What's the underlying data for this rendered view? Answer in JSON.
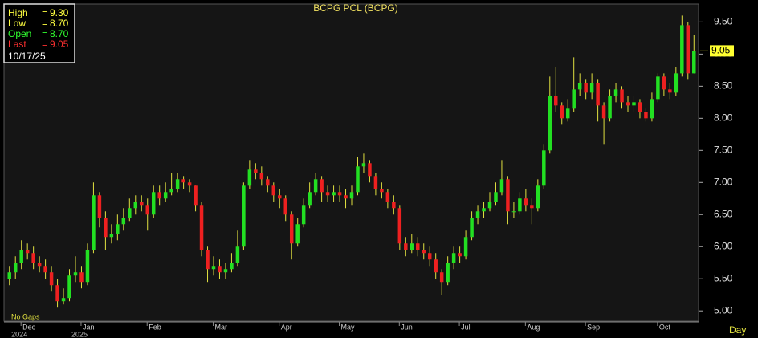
{
  "chart_data": {
    "type": "candlestick",
    "title": "BCPG PCL (BCPG)",
    "info": {
      "items": [
        {
          "label": "High",
          "value": "9.30",
          "color": "#ffff40"
        },
        {
          "label": "Low",
          "value": "8.70",
          "color": "#ffff40"
        },
        {
          "label": "Open",
          "value": "8.70",
          "color": "#30ff30"
        },
        {
          "label": "Last",
          "value": "9.05",
          "color": "#ff3030"
        }
      ],
      "date": "10/17/25"
    },
    "note": "No Gaps",
    "period": "Day",
    "categories": [
      null,
      null,
      null,
      "Dec",
      null,
      null,
      null,
      null,
      null,
      null,
      null,
      null,
      null,
      "Jan",
      null,
      null,
      null,
      null,
      null,
      null,
      null,
      null,
      null,
      null,
      "Feb",
      null,
      null,
      null,
      null,
      null,
      null,
      null,
      null,
      null,
      null,
      "Mar",
      null,
      null,
      null,
      null,
      null,
      null,
      null,
      null,
      null,
      null,
      "Apr",
      null,
      null,
      null,
      null,
      null,
      null,
      null,
      null,
      null,
      "May",
      null,
      null,
      null,
      null,
      null,
      null,
      null,
      null,
      null,
      "Jun",
      null,
      null,
      null,
      null,
      null,
      null,
      null,
      null,
      null,
      "Jul",
      null,
      null,
      null,
      null,
      null,
      null,
      null,
      null,
      null,
      null,
      "Aug",
      null,
      null,
      null,
      null,
      null,
      null,
      null,
      null,
      null,
      "Sep",
      null,
      null,
      null,
      null,
      null,
      null,
      null,
      null,
      null,
      null,
      null,
      "Oct",
      null,
      null,
      null,
      null,
      null
    ],
    "year_categories": [
      null,
      null,
      null,
      "2024",
      null,
      null,
      null,
      null,
      null,
      null,
      null,
      null,
      null,
      "2025",
      null,
      null,
      null,
      null,
      null,
      null,
      null,
      null,
      null,
      null,
      null,
      null,
      null,
      null,
      null,
      null,
      null,
      null,
      null,
      null,
      null,
      null,
      null,
      null,
      null,
      null,
      null,
      null,
      null,
      null,
      null,
      null,
      null,
      null,
      null,
      null,
      null,
      null,
      null,
      null,
      null,
      null,
      null,
      null,
      null,
      null,
      null,
      null,
      null,
      null,
      null,
      null,
      null,
      null,
      null,
      null,
      null,
      null,
      null,
      null,
      null,
      null,
      null,
      null,
      null,
      null,
      null,
      null,
      null,
      null,
      null,
      null,
      null,
      null,
      null,
      null,
      null,
      null,
      null,
      null,
      null,
      null,
      null,
      null,
      null,
      null,
      null,
      null,
      null,
      null,
      null,
      null,
      null,
      null,
      null,
      null,
      null,
      null,
      null,
      null,
      null
    ],
    "open": [
      5.5,
      5.6,
      5.75,
      5.95,
      5.9,
      5.75,
      5.7,
      5.6,
      5.4,
      5.15,
      5.2,
      5.55,
      5.6,
      5.45,
      5.95,
      6.8,
      6.45,
      6.15,
      6.2,
      6.35,
      6.45,
      6.6,
      6.7,
      6.65,
      6.5,
      6.85,
      6.75,
      6.85,
      6.9,
      7.05,
      7.0,
      6.95,
      6.65,
      5.95,
      5.65,
      5.7,
      5.6,
      5.65,
      5.75,
      6.0,
      6.95,
      7.2,
      7.15,
      7.05,
      6.95,
      6.8,
      6.75,
      6.5,
      6.05,
      6.35,
      6.65,
      6.85,
      7.05,
      6.85,
      6.8,
      6.85,
      6.8,
      6.75,
      6.85,
      7.25,
      7.3,
      7.1,
      6.9,
      6.85,
      6.7,
      6.6,
      6.05,
      5.95,
      6.05,
      5.95,
      5.9,
      5.8,
      5.6,
      5.45,
      5.75,
      5.9,
      5.85,
      6.15,
      6.45,
      6.55,
      6.6,
      6.7,
      6.85,
      7.05,
      6.55,
      6.55,
      6.75,
      6.65,
      6.6,
      6.95,
      7.5,
      8.35,
      8.2,
      8.0,
      8.15,
      8.45,
      8.55,
      8.4,
      8.55,
      8.2,
      8.0,
      8.35,
      8.45,
      8.25,
      8.2,
      8.25,
      8.1,
      8.0,
      8.3,
      8.65,
      8.45,
      8.4,
      8.7,
      9.45,
      8.7
    ],
    "high": [
      5.7,
      5.85,
      6.1,
      6.05,
      6.0,
      5.85,
      5.8,
      5.7,
      5.5,
      5.35,
      5.65,
      5.85,
      5.7,
      6.05,
      7.0,
      6.85,
      6.55,
      6.35,
      6.5,
      6.6,
      6.75,
      6.8,
      6.8,
      6.75,
      6.95,
      6.95,
      7.0,
      7.15,
      7.15,
      7.1,
      7.05,
      6.95,
      6.7,
      6.0,
      5.85,
      5.8,
      5.75,
      5.9,
      6.25,
      7.0,
      7.35,
      7.3,
      7.25,
      7.1,
      7.0,
      6.9,
      6.8,
      6.55,
      6.45,
      6.75,
      7.0,
      7.15,
      7.1,
      6.95,
      6.95,
      6.95,
      6.9,
      6.95,
      7.4,
      7.45,
      7.35,
      7.15,
      7.0,
      6.9,
      6.8,
      6.65,
      6.15,
      6.2,
      6.15,
      6.05,
      6.0,
      5.9,
      5.65,
      5.85,
      6.0,
      6.0,
      6.25,
      6.55,
      6.65,
      6.7,
      6.85,
      7.0,
      7.35,
      7.1,
      6.7,
      6.85,
      6.9,
      6.75,
      7.05,
      7.6,
      8.65,
      8.8,
      8.25,
      8.3,
      8.95,
      8.7,
      8.6,
      8.7,
      8.6,
      8.25,
      8.45,
      8.55,
      8.5,
      8.35,
      8.35,
      8.3,
      8.15,
      8.4,
      8.7,
      8.7,
      8.55,
      8.8,
      9.6,
      9.5,
      9.3
    ],
    "low": [
      5.4,
      5.5,
      5.65,
      5.8,
      5.65,
      5.6,
      5.5,
      5.3,
      5.05,
      5.1,
      5.15,
      5.45,
      5.35,
      5.4,
      5.9,
      6.3,
      5.95,
      6.05,
      6.1,
      6.25,
      6.4,
      6.5,
      6.55,
      6.25,
      6.45,
      6.65,
      6.7,
      6.8,
      6.85,
      6.9,
      6.85,
      6.55,
      5.85,
      5.45,
      5.55,
      5.5,
      5.5,
      5.6,
      5.7,
      5.95,
      6.9,
      7.05,
      6.95,
      6.85,
      6.7,
      6.6,
      6.4,
      5.8,
      6.0,
      6.3,
      6.6,
      6.8,
      6.7,
      6.7,
      6.7,
      6.7,
      6.6,
      6.65,
      6.8,
      7.15,
      7.0,
      6.8,
      6.75,
      6.6,
      6.5,
      5.95,
      5.85,
      5.9,
      5.85,
      5.8,
      5.7,
      5.5,
      5.25,
      5.4,
      5.65,
      5.75,
      5.8,
      6.1,
      6.35,
      6.45,
      6.55,
      6.65,
      6.8,
      6.35,
      6.45,
      6.5,
      6.55,
      6.35,
      6.55,
      6.9,
      7.45,
      8.1,
      7.9,
      7.95,
      8.1,
      8.35,
      8.3,
      8.3,
      7.95,
      7.6,
      7.95,
      8.25,
      8.15,
      8.1,
      8.1,
      8.0,
      7.95,
      7.95,
      8.25,
      8.35,
      8.3,
      8.35,
      8.65,
      8.6,
      8.7
    ],
    "close": [
      5.6,
      5.75,
      5.95,
      5.9,
      5.75,
      5.7,
      5.6,
      5.4,
      5.15,
      5.2,
      5.55,
      5.6,
      5.45,
      5.95,
      6.8,
      6.45,
      6.15,
      6.2,
      6.35,
      6.45,
      6.6,
      6.7,
      6.65,
      6.5,
      6.85,
      6.75,
      6.85,
      6.9,
      7.05,
      7.0,
      6.95,
      6.65,
      5.95,
      5.65,
      5.7,
      5.6,
      5.65,
      5.75,
      6.0,
      6.95,
      7.2,
      7.15,
      7.05,
      6.95,
      6.8,
      6.75,
      6.5,
      6.05,
      6.35,
      6.65,
      6.85,
      7.05,
      6.85,
      6.8,
      6.85,
      6.8,
      6.75,
      6.85,
      7.25,
      7.3,
      7.1,
      6.9,
      6.85,
      6.7,
      6.6,
      6.05,
      5.95,
      6.05,
      5.95,
      5.9,
      5.8,
      5.6,
      5.45,
      5.75,
      5.9,
      5.85,
      6.15,
      6.45,
      6.55,
      6.6,
      6.7,
      6.85,
      7.05,
      6.55,
      6.55,
      6.75,
      6.65,
      6.6,
      6.95,
      7.5,
      8.35,
      8.2,
      8.0,
      8.15,
      8.45,
      8.55,
      8.4,
      8.55,
      8.2,
      8.0,
      8.35,
      8.45,
      8.25,
      8.2,
      8.25,
      8.1,
      8.0,
      8.3,
      8.65,
      8.45,
      8.4,
      8.7,
      9.45,
      8.7,
      9.05
    ],
    "up_color": "#22e022",
    "down_color": "#ee2020",
    "wick_color": "#e0e040",
    "ylim": [
      4.84,
      9.78
    ],
    "yticks": [
      {
        "value": 5,
        "label": "5.00"
      },
      {
        "value": 5.5,
        "label": "5.50"
      },
      {
        "value": 6,
        "label": "6.00"
      },
      {
        "value": 6.5,
        "label": "6.50"
      },
      {
        "value": 7,
        "label": "7.00"
      },
      {
        "value": 7.5,
        "label": "7.50"
      },
      {
        "value": 8,
        "label": "8.00"
      },
      {
        "value": 8.5,
        "label": "8.50"
      },
      {
        "value": 9,
        "label": "9.00"
      },
      {
        "value": 9.5,
        "label": "9.50"
      }
    ],
    "grid": false
  }
}
